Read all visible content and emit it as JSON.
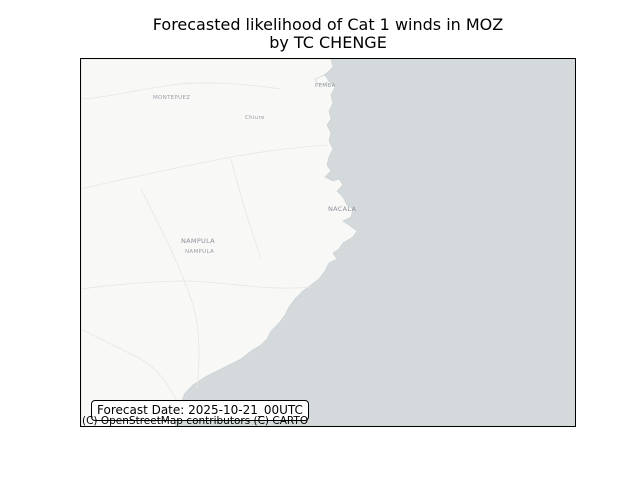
{
  "title": {
    "line1": "Forecasted likelihood of Cat 1 winds in MOZ",
    "line2": "by TC CHENGE"
  },
  "forecast_date_label": "Forecast Date: 2025-10-21_00UTC",
  "attribution": "(C) OpenStreetMap contributors (C) CARTO",
  "map": {
    "land_color": "#f7f7f5",
    "sea_color": "#d4dadc",
    "places": [
      {
        "name": "MONTEPUEZ"
      },
      {
        "name": "Chiure"
      },
      {
        "name": "PEMBA"
      },
      {
        "name": "NACALA"
      },
      {
        "name": "NAMPULA"
      },
      {
        "name": "NAMPULA"
      }
    ]
  }
}
